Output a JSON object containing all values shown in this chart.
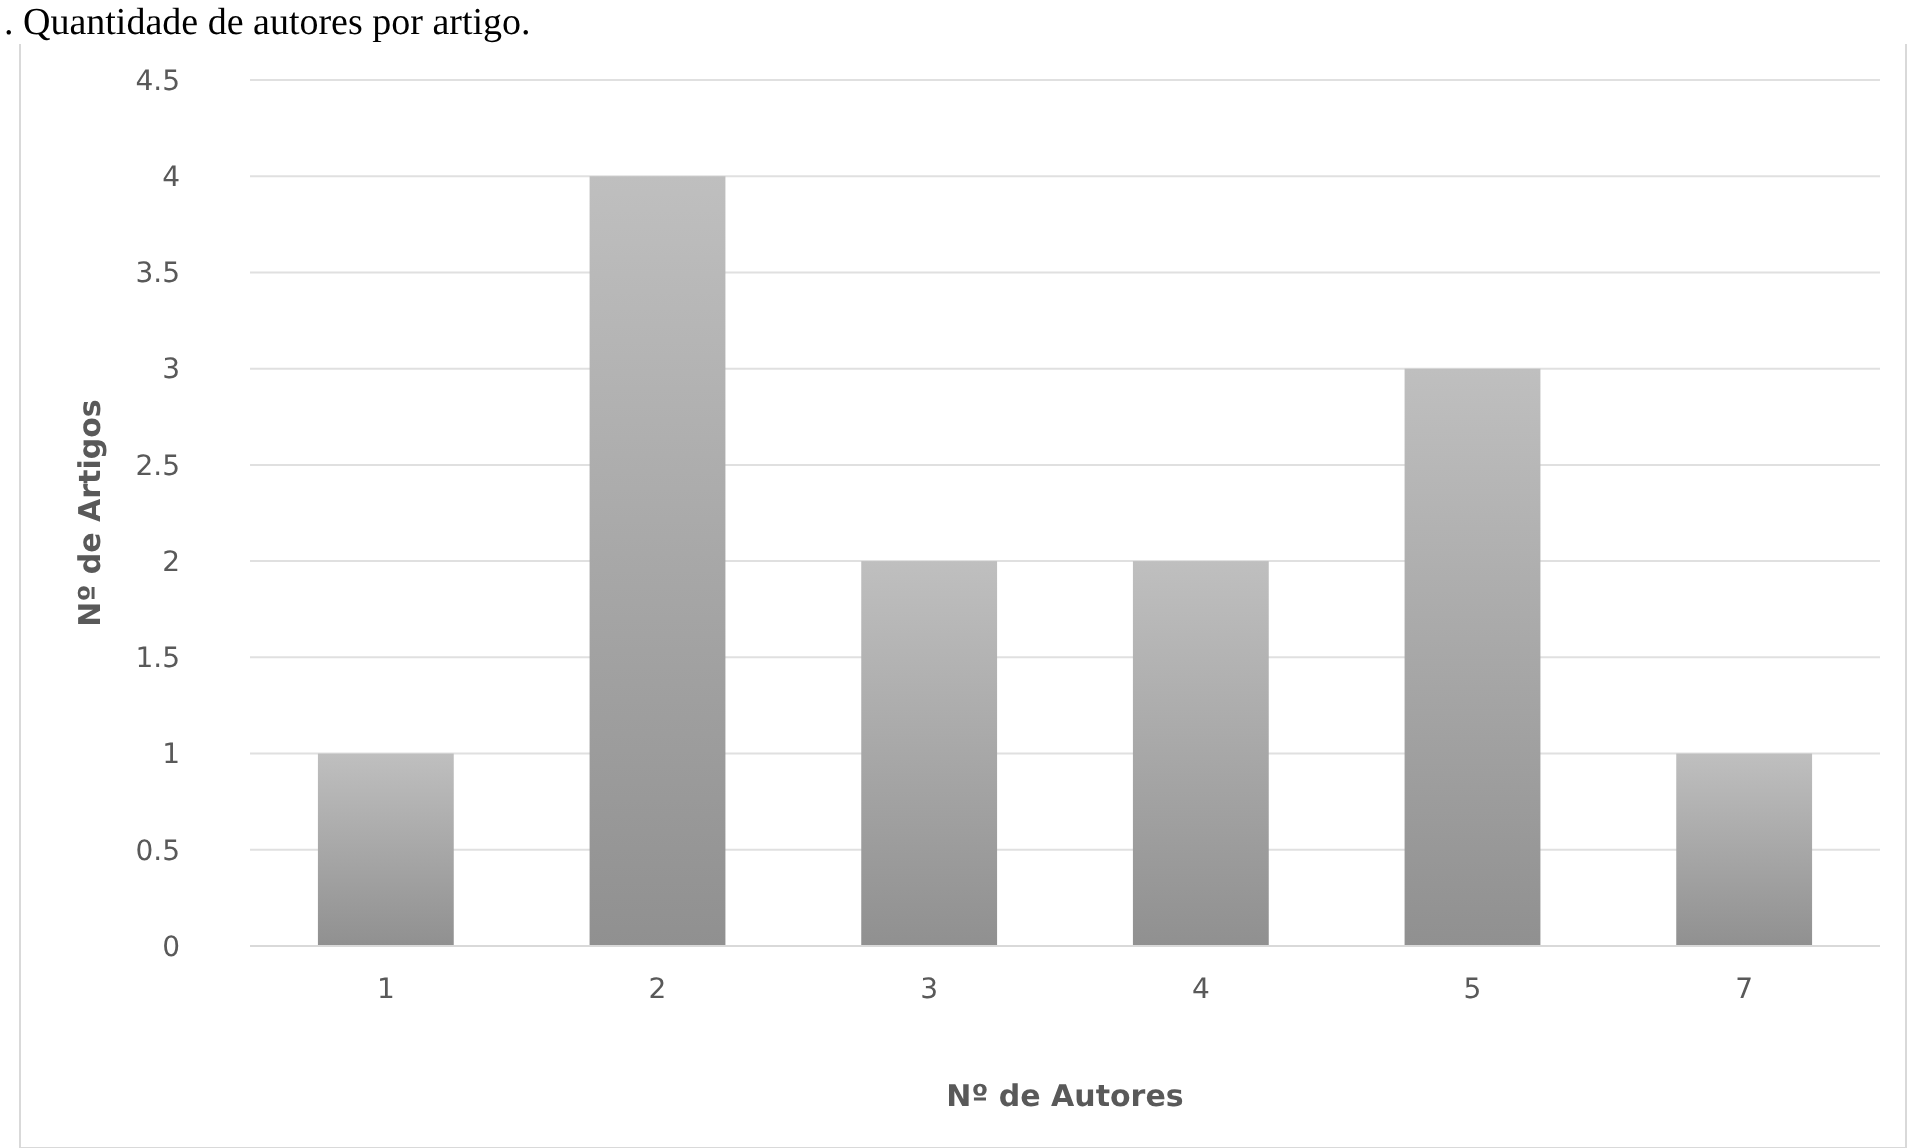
{
  "chart_data": {
    "type": "bar",
    "title": ". Quantidade de autores por artigo.",
    "xlabel": "Nº de Autores",
    "ylabel": "Nº de Artigos",
    "categories": [
      "1",
      "2",
      "3",
      "4",
      "5",
      "7"
    ],
    "values": [
      1,
      4,
      2,
      2,
      3,
      1
    ],
    "color": "#a6a6a6",
    "ylim": [
      0,
      4.5
    ],
    "yticks": [
      0,
      0.5,
      1,
      1.5,
      2,
      2.5,
      3,
      3.5,
      4,
      4.5
    ],
    "grid": "y"
  }
}
